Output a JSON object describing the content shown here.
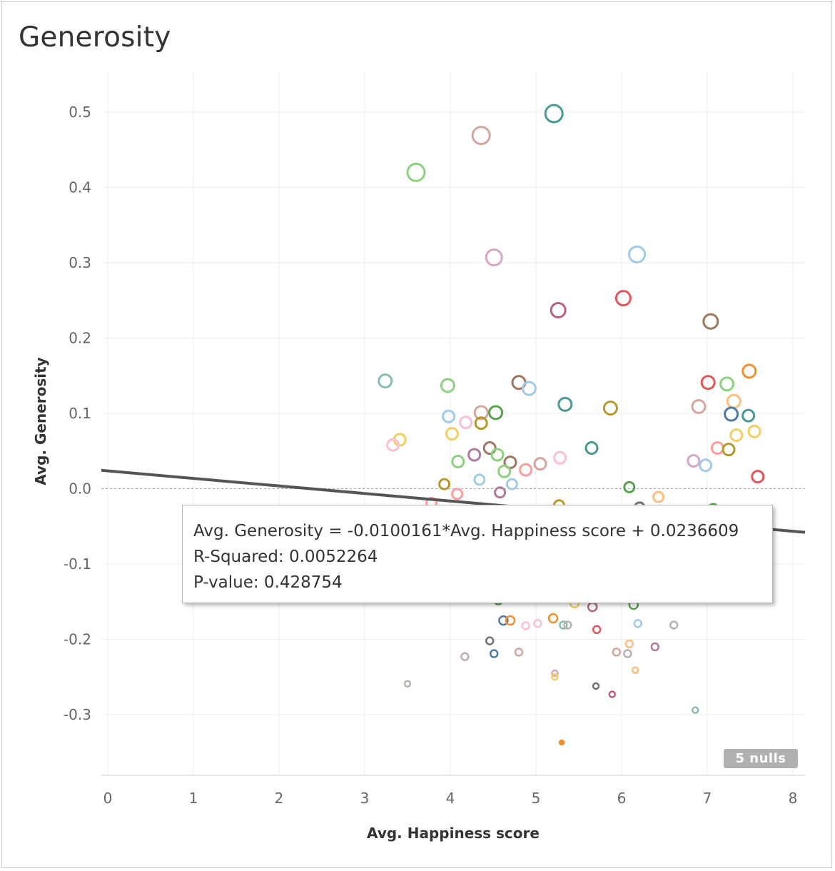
{
  "chart_data": {
    "type": "scatter",
    "title": "Generosity",
    "xlabel": "Avg. Happiness score",
    "ylabel": "Avg. Generosity",
    "xlim": [
      -0.1,
      8.2
    ],
    "ylim": [
      -0.38,
      0.55
    ],
    "x_ticks": [
      "0",
      "1",
      "2",
      "3",
      "4",
      "5",
      "6",
      "7",
      "8"
    ],
    "y_ticks": [
      {
        "value": 0.5,
        "label": "0.5"
      },
      {
        "value": 0.4,
        "label": "0.4"
      },
      {
        "value": 0.3,
        "label": "0.3"
      },
      {
        "value": 0.2,
        "label": "0.2"
      },
      {
        "value": 0.1,
        "label": "0.1"
      },
      {
        "value": 0.0,
        "label": "0.0"
      },
      {
        "value": -0.1,
        "label": "-0.1"
      },
      {
        "value": -0.2,
        "label": "-0.2"
      },
      {
        "value": -0.3,
        "label": "-0.3"
      }
    ],
    "grid": true,
    "trend_line": {
      "slope": -0.0100161,
      "intercept": 0.0236609,
      "color": "#555555"
    },
    "nulls_label": "5 nulls",
    "tooltip_lines": [
      "Avg. Generosity = -0.0100161*Avg. Happiness score + 0.0236609",
      "R-Squared: 0.0052264",
      "P-value: 0.428754"
    ],
    "points": [
      {
        "x": 5.21,
        "y": 0.498,
        "size": 12,
        "color": "#499894"
      },
      {
        "x": 4.36,
        "y": 0.469,
        "size": 12,
        "color": "#d4a6a0"
      },
      {
        "x": 3.6,
        "y": 0.42,
        "size": 12,
        "color": "#8cd17d"
      },
      {
        "x": 4.51,
        "y": 0.307,
        "size": 11,
        "color": "#d4a6c8"
      },
      {
        "x": 6.18,
        "y": 0.311,
        "size": 11,
        "color": "#9ecae9"
      },
      {
        "x": 5.26,
        "y": 0.237,
        "size": 10,
        "color": "#b6627f"
      },
      {
        "x": 6.02,
        "y": 0.253,
        "size": 10,
        "color": "#e15759"
      },
      {
        "x": 7.04,
        "y": 0.222,
        "size": 10,
        "color": "#9d7660"
      },
      {
        "x": 3.24,
        "y": 0.143,
        "size": 9,
        "color": "#86bcb6"
      },
      {
        "x": 3.97,
        "y": 0.137,
        "size": 9,
        "color": "#8cd17d"
      },
      {
        "x": 4.8,
        "y": 0.141,
        "size": 9,
        "color": "#9d7660"
      },
      {
        "x": 4.92,
        "y": 0.133,
        "size": 9,
        "color": "#a0cbe8"
      },
      {
        "x": 5.34,
        "y": 0.112,
        "size": 9,
        "color": "#499894"
      },
      {
        "x": 5.87,
        "y": 0.107,
        "size": 9,
        "color": "#b6992d"
      },
      {
        "x": 7.01,
        "y": 0.141,
        "size": 9,
        "color": "#e15759"
      },
      {
        "x": 7.23,
        "y": 0.139,
        "size": 9,
        "color": "#8cd17d"
      },
      {
        "x": 7.49,
        "y": 0.156,
        "size": 9,
        "color": "#f28e2b"
      },
      {
        "x": 6.9,
        "y": 0.109,
        "size": 9,
        "color": "#d4a6a0"
      },
      {
        "x": 7.31,
        "y": 0.116,
        "size": 9,
        "color": "#ffbe7d"
      },
      {
        "x": 7.28,
        "y": 0.099,
        "size": 9,
        "color": "#4e79a7"
      },
      {
        "x": 7.48,
        "y": 0.097,
        "size": 8,
        "color": "#499894"
      },
      {
        "x": 7.55,
        "y": 0.076,
        "size": 8,
        "color": "#f1ce63"
      },
      {
        "x": 7.34,
        "y": 0.071,
        "size": 8,
        "color": "#f1ce63"
      },
      {
        "x": 7.12,
        "y": 0.054,
        "size": 8,
        "color": "#ff9d9a"
      },
      {
        "x": 7.25,
        "y": 0.052,
        "size": 8,
        "color": "#b6992d"
      },
      {
        "x": 6.84,
        "y": 0.037,
        "size": 8,
        "color": "#d4a6c8"
      },
      {
        "x": 6.98,
        "y": 0.031,
        "size": 8,
        "color": "#a0cbe8"
      },
      {
        "x": 7.59,
        "y": 0.016,
        "size": 8,
        "color": "#e15759"
      },
      {
        "x": 3.98,
        "y": 0.096,
        "size": 8,
        "color": "#a0cbe8"
      },
      {
        "x": 4.36,
        "y": 0.101,
        "size": 9,
        "color": "#d4a6a0"
      },
      {
        "x": 4.53,
        "y": 0.101,
        "size": 9,
        "color": "#59a14f"
      },
      {
        "x": 4.18,
        "y": 0.088,
        "size": 8,
        "color": "#fabfd2"
      },
      {
        "x": 4.36,
        "y": 0.087,
        "size": 8,
        "color": "#b6992d"
      },
      {
        "x": 3.41,
        "y": 0.065,
        "size": 8,
        "color": "#f1ce63"
      },
      {
        "x": 3.33,
        "y": 0.058,
        "size": 8,
        "color": "#fabfd2"
      },
      {
        "x": 4.02,
        "y": 0.073,
        "size": 8,
        "color": "#f1ce63"
      },
      {
        "x": 4.46,
        "y": 0.054,
        "size": 8,
        "color": "#9d7660"
      },
      {
        "x": 4.28,
        "y": 0.045,
        "size": 8,
        "color": "#b07aa1"
      },
      {
        "x": 4.55,
        "y": 0.045,
        "size": 8,
        "color": "#8cd17d"
      },
      {
        "x": 4.09,
        "y": 0.036,
        "size": 8,
        "color": "#8cd17d"
      },
      {
        "x": 4.7,
        "y": 0.035,
        "size": 8,
        "color": "#9d7660"
      },
      {
        "x": 5.05,
        "y": 0.033,
        "size": 8,
        "color": "#d4a6a0"
      },
      {
        "x": 5.28,
        "y": 0.041,
        "size": 8,
        "color": "#fabfd2"
      },
      {
        "x": 5.65,
        "y": 0.054,
        "size": 8,
        "color": "#499894"
      },
      {
        "x": 4.63,
        "y": 0.023,
        "size": 8,
        "color": "#8cd17d"
      },
      {
        "x": 4.88,
        "y": 0.025,
        "size": 8,
        "color": "#ff9d9a"
      },
      {
        "x": 4.34,
        "y": 0.012,
        "size": 7,
        "color": "#a0cbe8"
      },
      {
        "x": 3.93,
        "y": 0.006,
        "size": 7,
        "color": "#b6992d"
      },
      {
        "x": 4.72,
        "y": 0.006,
        "size": 7,
        "color": "#a0cbe8"
      },
      {
        "x": 4.08,
        "y": -0.007,
        "size": 7,
        "color": "#ff9d9a"
      },
      {
        "x": 4.58,
        "y": -0.005,
        "size": 7,
        "color": "#b07aa1"
      },
      {
        "x": 6.09,
        "y": 0.002,
        "size": 7,
        "color": "#59a14f"
      },
      {
        "x": 6.43,
        "y": -0.011,
        "size": 7,
        "color": "#ffbe7d"
      },
      {
        "x": 3.78,
        "y": -0.019,
        "size": 7,
        "color": "#ff9d9a"
      },
      {
        "x": 5.27,
        "y": -0.022,
        "size": 7,
        "color": "#b6992d"
      },
      {
        "x": 6.21,
        "y": -0.025,
        "size": 7,
        "color": "#79706e"
      },
      {
        "x": 7.07,
        "y": -0.027,
        "size": 7,
        "color": "#59a14f"
      },
      {
        "x": 4.56,
        "y": -0.148,
        "size": 6,
        "color": "#59a14f"
      },
      {
        "x": 5.45,
        "y": -0.152,
        "size": 6,
        "color": "#f1ce63"
      },
      {
        "x": 5.66,
        "y": -0.157,
        "size": 6,
        "color": "#b6627f"
      },
      {
        "x": 6.14,
        "y": -0.154,
        "size": 6,
        "color": "#59a14f"
      },
      {
        "x": 4.62,
        "y": -0.175,
        "size": 6,
        "color": "#4e79a7"
      },
      {
        "x": 4.7,
        "y": -0.175,
        "size": 6,
        "color": "#f28e2b"
      },
      {
        "x": 4.88,
        "y": -0.182,
        "size": 5,
        "color": "#fabfd2"
      },
      {
        "x": 5.02,
        "y": -0.179,
        "size": 5,
        "color": "#fabfd2"
      },
      {
        "x": 5.2,
        "y": -0.172,
        "size": 6,
        "color": "#f28e2b"
      },
      {
        "x": 5.32,
        "y": -0.181,
        "size": 5,
        "color": "#86bcb6"
      },
      {
        "x": 5.37,
        "y": -0.181,
        "size": 5,
        "color": "#bab0ac"
      },
      {
        "x": 5.71,
        "y": -0.187,
        "size": 5,
        "color": "#e15759"
      },
      {
        "x": 6.19,
        "y": -0.179,
        "size": 5,
        "color": "#a0cbe8"
      },
      {
        "x": 6.61,
        "y": -0.181,
        "size": 5,
        "color": "#bab0ac"
      },
      {
        "x": 4.46,
        "y": -0.202,
        "size": 5,
        "color": "#79706e"
      },
      {
        "x": 4.51,
        "y": -0.219,
        "size": 5,
        "color": "#4e79a7"
      },
      {
        "x": 4.8,
        "y": -0.217,
        "size": 5,
        "color": "#d4a6a0"
      },
      {
        "x": 4.17,
        "y": -0.223,
        "size": 5,
        "color": "#bab0ac"
      },
      {
        "x": 6.09,
        "y": -0.206,
        "size": 5,
        "color": "#ffbe7d"
      },
      {
        "x": 5.94,
        "y": -0.217,
        "size": 5,
        "color": "#d4a6a0"
      },
      {
        "x": 6.07,
        "y": -0.219,
        "size": 5,
        "color": "#bab0ac"
      },
      {
        "x": 6.39,
        "y": -0.21,
        "size": 5,
        "color": "#b07aa1"
      },
      {
        "x": 5.22,
        "y": -0.245,
        "size": 4,
        "color": "#d4a6c8"
      },
      {
        "x": 5.22,
        "y": -0.25,
        "size": 4,
        "color": "#f1ce63"
      },
      {
        "x": 6.16,
        "y": -0.241,
        "size": 4,
        "color": "#ffbe7d"
      },
      {
        "x": 3.5,
        "y": -0.259,
        "size": 4,
        "color": "#bab0ac"
      },
      {
        "x": 5.7,
        "y": -0.262,
        "size": 4,
        "color": "#79706e"
      },
      {
        "x": 5.89,
        "y": -0.273,
        "size": 4,
        "color": "#b6627f"
      },
      {
        "x": 6.86,
        "y": -0.294,
        "size": 4,
        "color": "#86bcb6"
      },
      {
        "x": 5.3,
        "y": -0.337,
        "size": 3,
        "color": "#f28e2b",
        "filled": true
      }
    ]
  }
}
